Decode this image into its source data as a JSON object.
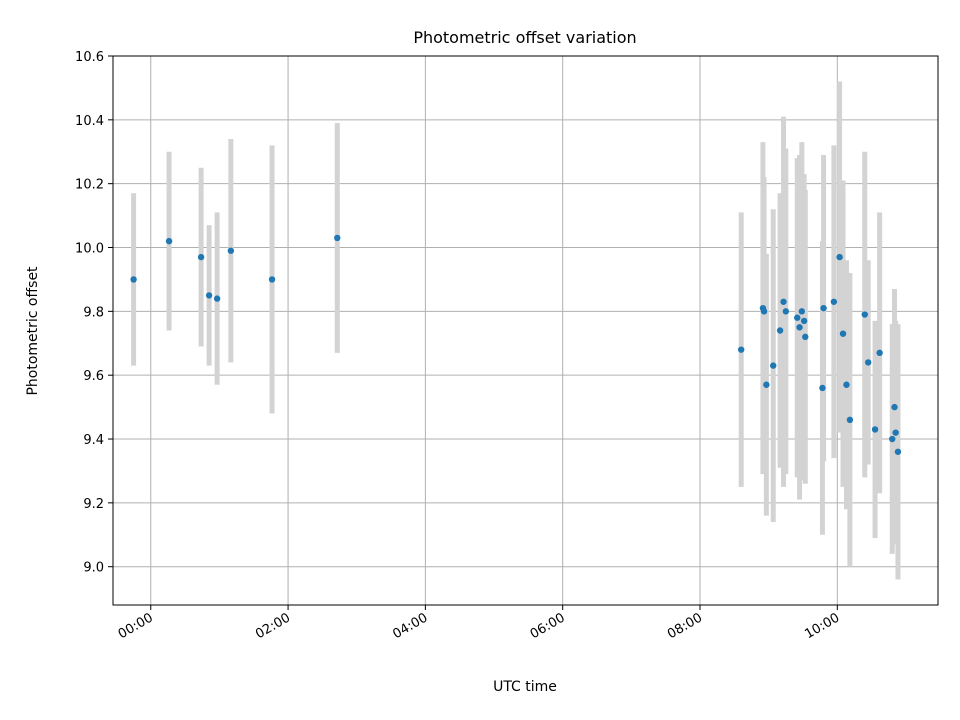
{
  "chart_data": {
    "type": "scatter",
    "title": "Photometric offset variation",
    "xlabel": "UTC time",
    "ylabel": "Photometric offset",
    "x_axis": {
      "kind": "time",
      "range": [
        "23:27",
        "11:28"
      ],
      "ticks": [
        "00:00",
        "02:00",
        "04:00",
        "06:00",
        "08:00",
        "10:00"
      ],
      "tick_label_rotation": "30 degrees"
    },
    "y_axis": {
      "range": [
        8.88,
        10.6
      ],
      "ticks": [
        "9.0",
        "9.2",
        "9.4",
        "9.6",
        "9.8",
        "10.0",
        "10.2",
        "10.4",
        "10.6"
      ]
    },
    "grid": true,
    "error_bars": true,
    "colors": {
      "points": "#1f77b4",
      "error_bars": "#d3d3d3",
      "grid": "#b0b0b0"
    },
    "points": [
      {
        "t": "23:45",
        "y": 9.9,
        "yerr": 0.27
      },
      {
        "t": "00:16",
        "y": 10.02,
        "yerr": 0.28
      },
      {
        "t": "00:44",
        "y": 9.97,
        "yerr": 0.28
      },
      {
        "t": "00:51",
        "y": 9.85,
        "yerr": 0.22
      },
      {
        "t": "00:58",
        "y": 9.84,
        "yerr": 0.27
      },
      {
        "t": "01:10",
        "y": 9.99,
        "yerr": 0.35
      },
      {
        "t": "01:46",
        "y": 9.9,
        "yerr": 0.42
      },
      {
        "t": "02:43",
        "y": 10.03,
        "yerr": 0.36
      },
      {
        "t": "08:36",
        "y": 9.68,
        "yerr": 0.43
      },
      {
        "t": "08:55",
        "y": 9.81,
        "yerr": 0.52
      },
      {
        "t": "08:56",
        "y": 9.8,
        "yerr": 0.42
      },
      {
        "t": "08:58",
        "y": 9.57,
        "yerr": 0.41
      },
      {
        "t": "09:04",
        "y": 9.63,
        "yerr": 0.49
      },
      {
        "t": "09:10",
        "y": 9.74,
        "yerr": 0.43
      },
      {
        "t": "09:13",
        "y": 9.83,
        "yerr": 0.58
      },
      {
        "t": "09:15",
        "y": 9.8,
        "yerr": 0.51
      },
      {
        "t": "09:25",
        "y": 9.78,
        "yerr": 0.5
      },
      {
        "t": "09:27",
        "y": 9.75,
        "yerr": 0.54
      },
      {
        "t": "09:29",
        "y": 9.8,
        "yerr": 0.53
      },
      {
        "t": "09:31",
        "y": 9.77,
        "yerr": 0.46
      },
      {
        "t": "09:32",
        "y": 9.72,
        "yerr": 0.46
      },
      {
        "t": "09:47",
        "y": 9.56,
        "yerr": 0.46
      },
      {
        "t": "09:48",
        "y": 9.81,
        "yerr": 0.48
      },
      {
        "t": "09:57",
        "y": 9.83,
        "yerr": 0.49
      },
      {
        "t": "10:02",
        "y": 9.97,
        "yerr": 0.55
      },
      {
        "t": "10:05",
        "y": 9.73,
        "yerr": 0.48
      },
      {
        "t": "10:08",
        "y": 9.57,
        "yerr": 0.39
      },
      {
        "t": "10:11",
        "y": 9.46,
        "yerr": 0.46
      },
      {
        "t": "10:24",
        "y": 9.79,
        "yerr": 0.51
      },
      {
        "t": "10:27",
        "y": 9.64,
        "yerr": 0.32
      },
      {
        "t": "10:33",
        "y": 9.43,
        "yerr": 0.34
      },
      {
        "t": "10:37",
        "y": 9.67,
        "yerr": 0.44
      },
      {
        "t": "10:48",
        "y": 9.4,
        "yerr": 0.36
      },
      {
        "t": "10:50",
        "y": 9.5,
        "yerr": 0.37
      },
      {
        "t": "10:51",
        "y": 9.42,
        "yerr": 0.35
      },
      {
        "t": "10:53",
        "y": 9.36,
        "yerr": 0.4
      }
    ]
  }
}
